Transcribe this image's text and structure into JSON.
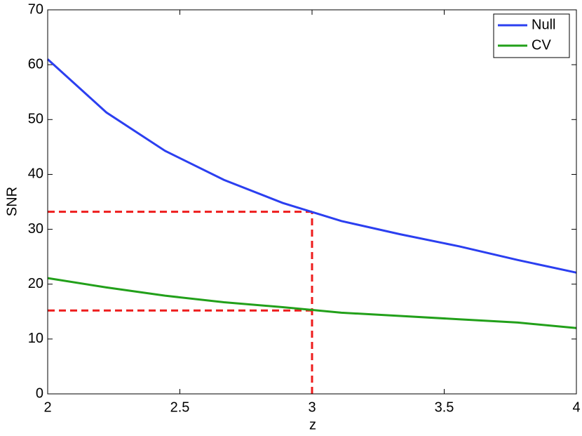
{
  "chart_data": {
    "type": "line",
    "xlabel": "z",
    "ylabel": "SNR",
    "x": [
      2,
      2.222,
      2.444,
      2.667,
      2.889,
      3.111,
      3.333,
      3.556,
      3.778,
      4
    ],
    "series": [
      {
        "name": "Null",
        "color": "#2b3ff0",
        "values": [
          61,
          51.3,
          44.3,
          39,
          34.8,
          31.5,
          29.1,
          26.9,
          24.4,
          22.1
        ]
      },
      {
        "name": "CV",
        "color": "#22a01a",
        "values": [
          21.1,
          19.4,
          17.9,
          16.7,
          15.8,
          14.8,
          14.2,
          13.6,
          13.0,
          12.0
        ]
      }
    ],
    "markers": [
      {
        "x": 3,
        "y": 33.2
      },
      {
        "x": 3,
        "y": 15.2
      }
    ],
    "marker_color": "#ee1c1c",
    "xlim": [
      2,
      4
    ],
    "xticks": [
      2,
      2.5,
      3,
      3.5,
      4
    ],
    "ylim": [
      0,
      70
    ],
    "yticks": [
      0,
      10,
      20,
      30,
      40,
      50,
      60,
      70
    ],
    "legend": "upper-right"
  }
}
